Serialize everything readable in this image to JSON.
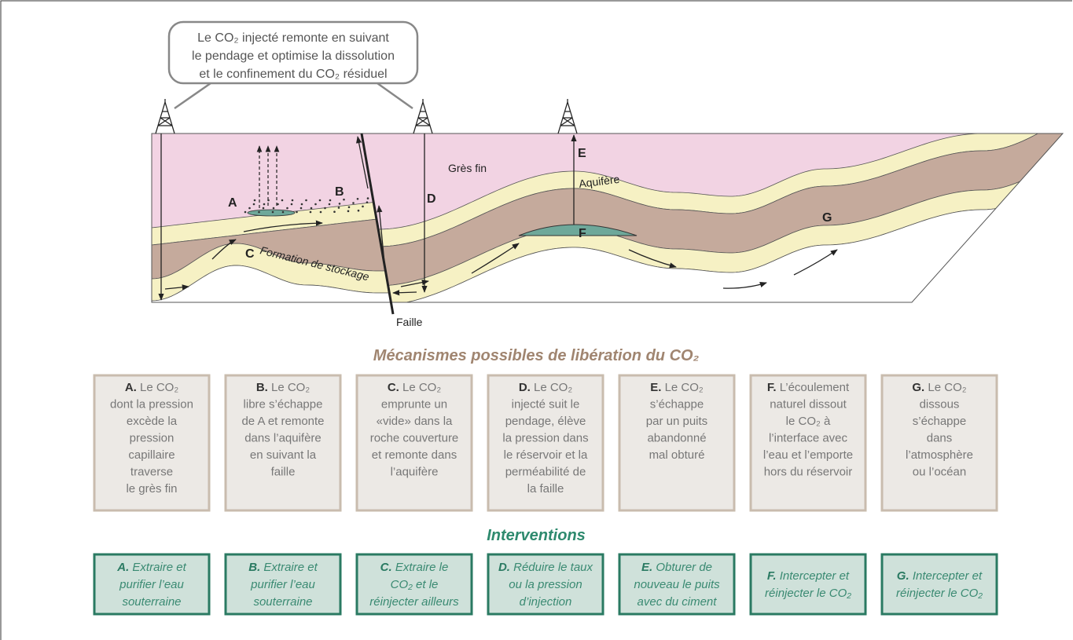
{
  "callout": [
    "Le CO₂ injecté remonte en suivant",
    "le pendage et optimise la dissolution",
    "et le confinement du CO₂ résiduel"
  ],
  "section": {
    "labels": {
      "a": "A",
      "b": "B",
      "c": "C",
      "d": "D",
      "e": "E",
      "f": "F",
      "g": "G",
      "gres": "Grès fin",
      "aquifere": "Aquifère",
      "formation": "Formation de stockage",
      "faille": "Faille"
    }
  },
  "mechanisms": {
    "title": "Mécanismes possibles de libération du CO₂",
    "items": [
      {
        "letter": "A.",
        "lines": [
          "Le CO₂",
          "dont la pression",
          "excède la",
          "pression",
          "capillaire",
          "traverse",
          "le grès fin"
        ]
      },
      {
        "letter": "B.",
        "lines": [
          "Le CO₂",
          "libre s’échappe",
          "de A et remonte",
          "dans l’aquifère",
          "en suivant la",
          "faille"
        ]
      },
      {
        "letter": "C.",
        "lines": [
          "Le CO₂",
          "emprunte un",
          "«vide» dans la",
          "roche couverture",
          "et remonte dans",
          "l’aquifère"
        ]
      },
      {
        "letter": "D.",
        "lines": [
          "Le CO₂",
          "injecté suit le",
          "pendage, élève",
          "la pression dans",
          "le réservoir et la",
          "perméabilité de",
          "la faille"
        ]
      },
      {
        "letter": "E.",
        "lines": [
          "Le CO₂",
          "s’échappe",
          "par un puits",
          "abandonné",
          "mal obturé"
        ]
      },
      {
        "letter": "F.",
        "lines": [
          "L’écoulement",
          "naturel dissout",
          "le CO₂ à",
          "l’interface avec",
          "l’eau et l’emporte",
          "hors du réservoir"
        ]
      },
      {
        "letter": "G.",
        "lines": [
          "Le CO₂",
          "dissous",
          "s’échappe",
          "dans",
          "l’atmosphère",
          "ou l’océan"
        ]
      }
    ]
  },
  "interventions": {
    "title": "Interventions",
    "items": [
      {
        "letter": "A.",
        "lines": [
          "Extraire et",
          "purifier l’eau",
          "souterraine"
        ]
      },
      {
        "letter": "B.",
        "lines": [
          "Extraire et",
          "purifier l’eau",
          "souterraine"
        ]
      },
      {
        "letter": "C.",
        "lines": [
          "Extraire le",
          "CO₂ et le",
          "réinjecter ailleurs"
        ]
      },
      {
        "letter": "D.",
        "lines": [
          "Réduire le taux",
          "ou la pression",
          "d’injection"
        ]
      },
      {
        "letter": "E.",
        "lines": [
          "Obturer de",
          "nouveau le puits",
          "avec du ciment"
        ]
      },
      {
        "letter": "F.",
        "lines": [
          "Intercepter et",
          "réinjecter le CO₂"
        ]
      },
      {
        "letter": "G.",
        "lines": [
          "Intercepter et",
          "réinjecter le CO₂"
        ]
      }
    ]
  }
}
